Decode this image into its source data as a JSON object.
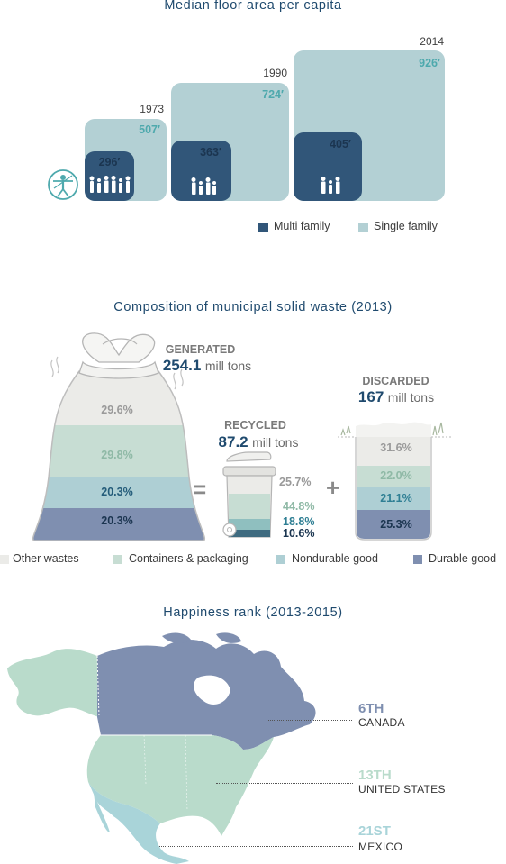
{
  "floor": {
    "title": "Median floor area per capita",
    "years": [
      {
        "year": "1973",
        "single": "507′",
        "multi": "296′"
      },
      {
        "year": "1990",
        "single": "724′",
        "multi": "363′"
      },
      {
        "year": "2014",
        "single": "926′",
        "multi": "405′"
      }
    ],
    "legend": {
      "multi": "Multi family",
      "single": "Single family"
    },
    "colors": {
      "single": "#b3d0d4",
      "multi": "#315679"
    }
  },
  "waste": {
    "title": "Composition of municipal solid waste (2013)",
    "generated": {
      "label": "GENERATED",
      "value": "254.1",
      "unit": "mill tons",
      "pcts": [
        "29.6%",
        "29.8%",
        "20.3%",
        "20.3%"
      ]
    },
    "recycled": {
      "label": "RECYCLED",
      "value": "87.2",
      "unit": "mill tons",
      "pcts": [
        "25.7%",
        "44.8%",
        "18.8%",
        "10.6%"
      ]
    },
    "discarded": {
      "label": "DISCARDED",
      "value": "167",
      "unit": "mill tons",
      "pcts": [
        "31.6%",
        "22.0%",
        "21.1%",
        "25.3%"
      ]
    },
    "legend": [
      "Other wastes",
      "Containers & packaging",
      "Nondurable good",
      "Durable good"
    ],
    "colors": [
      "#ebebe8",
      "#c7ddd3",
      "#aecfd4",
      "#7f8fb0"
    ],
    "equals": "=",
    "plus": "+"
  },
  "happiness": {
    "title": "Happiness rank (2013-2015)",
    "ranks": [
      {
        "rank": "6TH",
        "country": "CANADA",
        "color": "#7f8fb0"
      },
      {
        "rank": "13TH",
        "country": "UNITED STATES",
        "color": "#b9dbcb"
      },
      {
        "rank": "21ST",
        "country": "MEXICO",
        "color": "#a9d4d9"
      }
    ]
  },
  "chart_data": [
    {
      "type": "bar",
      "title": "Median floor area per capita",
      "categories": [
        "1973",
        "1990",
        "2014"
      ],
      "series": [
        {
          "name": "Single family",
          "values": [
            507,
            724,
            926
          ]
        },
        {
          "name": "Multi family",
          "values": [
            296,
            363,
            405
          ]
        }
      ]
    },
    {
      "type": "bar",
      "title": "Composition of municipal solid waste (2013)",
      "categories": [
        "Other wastes",
        "Containers & packaging",
        "Nondurable good",
        "Durable good"
      ],
      "series": [
        {
          "name": "GENERATED",
          "values": [
            29.6,
            29.8,
            20.3,
            20.3
          ]
        },
        {
          "name": "RECYCLED",
          "values": [
            25.7,
            44.8,
            18.8,
            10.6
          ]
        },
        {
          "name": "DISCARDED",
          "values": [
            31.6,
            22.0,
            21.1,
            25.3
          ]
        }
      ]
    }
  ]
}
